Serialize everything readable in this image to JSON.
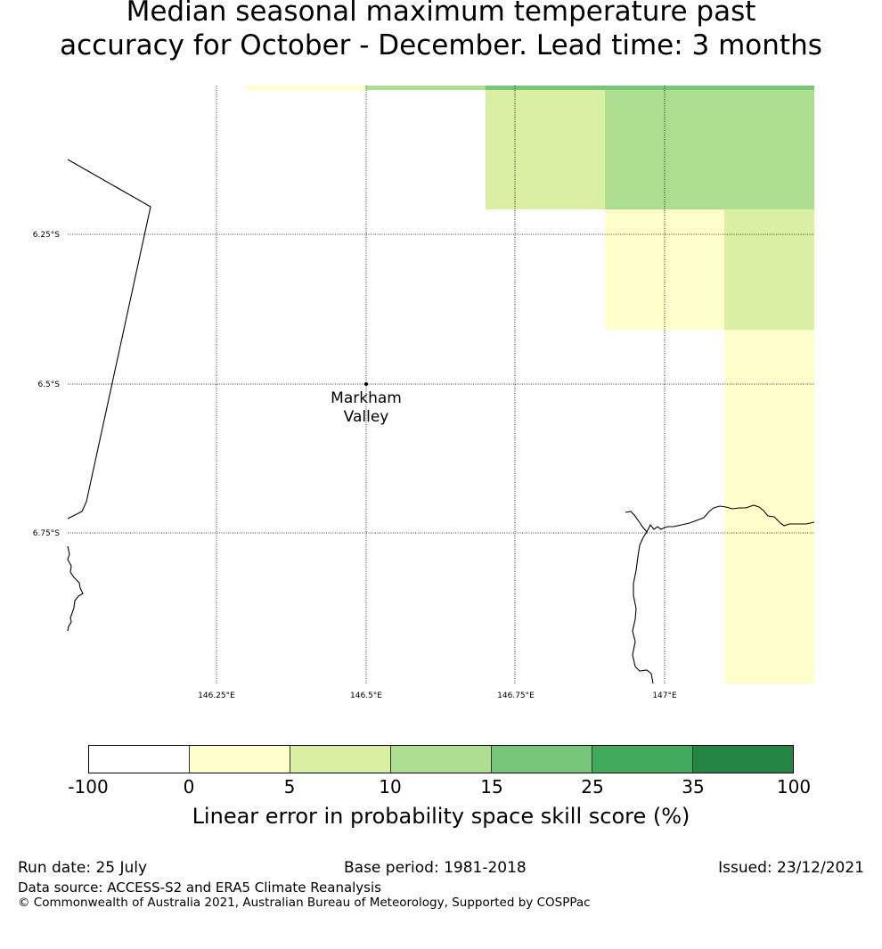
{
  "title": {
    "line1": "Median seasonal maximum temperature past",
    "line2": "accuracy for October - December. Lead time: 3 months"
  },
  "map": {
    "lat_labels": [
      "6.25°S",
      "6.5°S",
      "6.75°S"
    ],
    "lon_labels": [
      "146.25°E",
      "146.5°E",
      "146.75°E",
      "147°E"
    ],
    "location": {
      "name_line1": "Markham",
      "name_line2": "Valley"
    }
  },
  "colorbar": {
    "colors": [
      "#ffffff",
      "#ffffcc",
      "#d9f0a3",
      "#addd8e",
      "#78c679",
      "#41ab5d",
      "#238443"
    ],
    "ticks": [
      "-100",
      "0",
      "5",
      "10",
      "15",
      "25",
      "35",
      "100"
    ],
    "label": "Linear error in probability space skill score (%)"
  },
  "footer": {
    "run_date": "Run date: 25 July",
    "base_period": "Base period: 1981-2018",
    "issued": "Issued: 23/12/2021",
    "data_source": "Data source: ACCESS-S2 and ERA5 Climate Reanalysis",
    "copyright": "© Commonwealth of Australia 2021, Australian Bureau of Meteorology, Supported by COSPPac"
  }
}
